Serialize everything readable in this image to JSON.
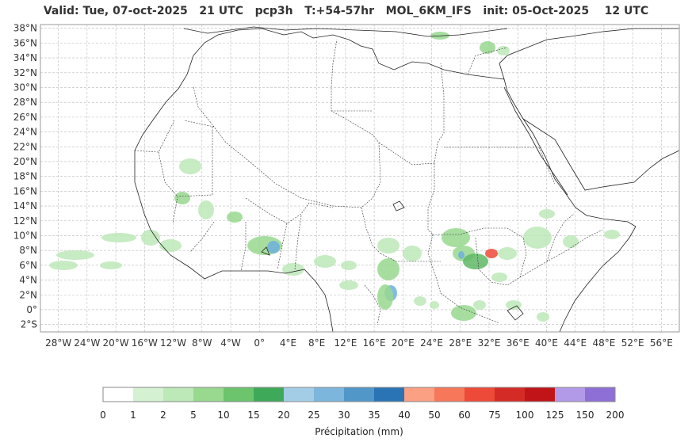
{
  "title": "Valid: Tue, 07-oct-2025   21 UTC   pcp3h   T:+54-57hr   MOL_6KM_IFS   init: 05-Oct-2025    12 UTC",
  "map": {
    "lat_labels": [
      "38°N",
      "36°N",
      "34°N",
      "32°N",
      "30°N",
      "28°N",
      "26°N",
      "24°N",
      "22°N",
      "20°N",
      "18°N",
      "16°N",
      "14°N",
      "12°N",
      "10°N",
      "8°N",
      "6°N",
      "4°N",
      "2°N",
      "0°",
      "2°S"
    ],
    "lon_labels": [
      "28°W",
      "24°W",
      "20°W",
      "16°W",
      "12°W",
      "8°W",
      "4°W",
      "0°",
      "4°E",
      "8°E",
      "12°E",
      "16°E",
      "20°E",
      "24°E",
      "28°E",
      "32°E",
      "36°E",
      "40°E",
      "44°E",
      "48°E",
      "52°E",
      "56°E"
    ],
    "lat_values": [
      38,
      36,
      34,
      32,
      30,
      28,
      26,
      24,
      22,
      20,
      18,
      16,
      14,
      12,
      10,
      8,
      6,
      4,
      2,
      0,
      -2
    ],
    "lon_values": [
      -28,
      -24,
      -20,
      -16,
      -12,
      -8,
      -4,
      0,
      4,
      8,
      12,
      16,
      20,
      24,
      28,
      32,
      36,
      40,
      44,
      48,
      52,
      56
    ],
    "extent": {
      "lon_min": -30.5,
      "lon_max": 58.5,
      "lat_min": -3,
      "lat_max": 38.5
    }
  },
  "colorbar": {
    "label": "Précipitation (mm)",
    "ticks": [
      "0",
      "1",
      "2",
      "5",
      "10",
      "15",
      "20",
      "25",
      "30",
      "35",
      "40",
      "50",
      "60",
      "75",
      "100",
      "125",
      "150",
      "200"
    ],
    "colors": [
      "#ffffff",
      "#d4f2d2",
      "#bde8b8",
      "#98d88f",
      "#6cc46d",
      "#3fa95a",
      "#a3cde6",
      "#7db6dc",
      "#5197c8",
      "#2a74b5",
      "#fba083",
      "#f6775a",
      "#ee4a39",
      "#d52b26",
      "#c11419",
      "#b39ae8",
      "#8e6fd6",
      "#4e0084"
    ]
  },
  "precip_colors": {
    "light": "#bde8b8",
    "mid": "#98d88f",
    "heavy": "#5fb866",
    "blue": "#6fb0dc",
    "darkblue": "#2a74b5",
    "red": "#ee4a39"
  }
}
